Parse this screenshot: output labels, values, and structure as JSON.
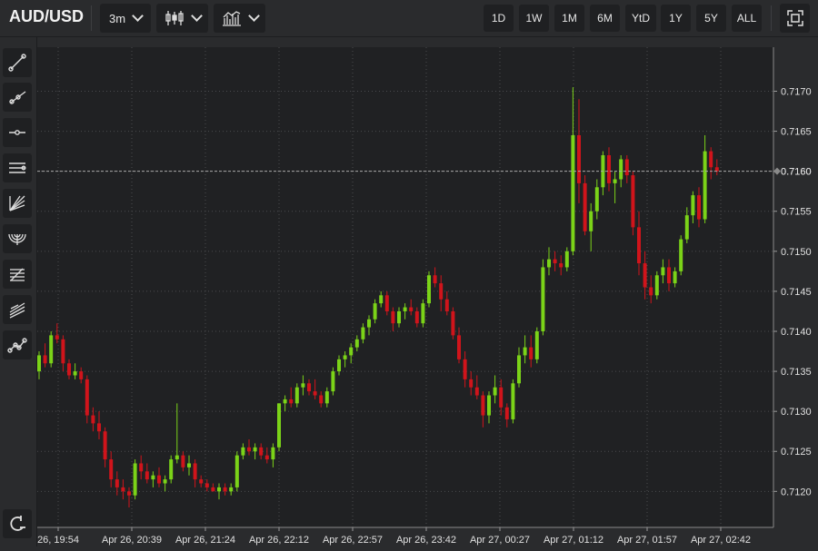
{
  "symbol": "AUD/USD",
  "toolbar": {
    "interval": "3m",
    "chart_type_icon": "candlestick-icon",
    "indicators_icon": "indicators-icon",
    "fullscreen_icon": "fullscreen-icon"
  },
  "ranges": [
    "1D",
    "1W",
    "1M",
    "6M",
    "YtD",
    "1Y",
    "5Y",
    "ALL"
  ],
  "tools": [
    "trend-line-icon",
    "ray-icon",
    "horizontal-line-icon",
    "parallel-channel-icon",
    "fib-fan-icon",
    "fib-arc-icon",
    "fib-retracement-icon",
    "pitchfork-icon",
    "path-tool-icon",
    "magnet-icon"
  ],
  "colors": {
    "up": "#7bd318",
    "down": "#d0141b",
    "background": "#202123",
    "grid": "#4a4b4e"
  },
  "chart_data": {
    "type": "candlestick",
    "y_ticks": [
      "0.7120",
      "0.7125",
      "0.7130",
      "0.7135",
      "0.7140",
      "0.7145",
      "0.7150",
      "0.7155",
      "0.7160",
      "0.7165",
      "0.7170"
    ],
    "ylim": [
      0.71155,
      0.71755
    ],
    "x_ticks": [
      "26, 19:54",
      "Apr 26, 20:39",
      "Apr 26, 21:24",
      "Apr 26, 22:12",
      "Apr 26, 22:57",
      "Apr 26, 23:42",
      "Apr 27, 00:27",
      "Apr 27, 01:12",
      "Apr 27, 01:57",
      "Apr 27, 02:42"
    ],
    "last_price": "0.7160",
    "grid": true,
    "candles": [
      [
        0.7135,
        0.71375,
        0.7134,
        0.7137
      ],
      [
        0.7137,
        0.71385,
        0.71355,
        0.7136
      ],
      [
        0.7136,
        0.714,
        0.71355,
        0.71395
      ],
      [
        0.71395,
        0.7141,
        0.71385,
        0.7139
      ],
      [
        0.7139,
        0.71395,
        0.7135,
        0.7136
      ],
      [
        0.7136,
        0.71365,
        0.7134,
        0.71345
      ],
      [
        0.71345,
        0.7136,
        0.7134,
        0.7135
      ],
      [
        0.7135,
        0.71355,
        0.71335,
        0.7134
      ],
      [
        0.7134,
        0.71345,
        0.71285,
        0.71295
      ],
      [
        0.71295,
        0.71305,
        0.71275,
        0.71285
      ],
      [
        0.71285,
        0.713,
        0.71265,
        0.71275
      ],
      [
        0.71275,
        0.7128,
        0.7123,
        0.7124
      ],
      [
        0.7124,
        0.7125,
        0.71205,
        0.71215
      ],
      [
        0.71215,
        0.71225,
        0.71195,
        0.71205
      ],
      [
        0.71205,
        0.71215,
        0.7119,
        0.712
      ],
      [
        0.712,
        0.71205,
        0.7118,
        0.71195
      ],
      [
        0.71195,
        0.7124,
        0.7119,
        0.71235
      ],
      [
        0.71235,
        0.71245,
        0.71215,
        0.71225
      ],
      [
        0.71225,
        0.71235,
        0.7121,
        0.71215
      ],
      [
        0.71215,
        0.71225,
        0.71205,
        0.7122
      ],
      [
        0.7122,
        0.7123,
        0.71205,
        0.7121
      ],
      [
        0.7121,
        0.7122,
        0.712,
        0.71215
      ],
      [
        0.71215,
        0.71245,
        0.7121,
        0.7124
      ],
      [
        0.7124,
        0.7131,
        0.71235,
        0.71245
      ],
      [
        0.71245,
        0.7125,
        0.71225,
        0.7123
      ],
      [
        0.7123,
        0.71245,
        0.7122,
        0.71235
      ],
      [
        0.71235,
        0.7124,
        0.71205,
        0.71215
      ],
      [
        0.71215,
        0.7122,
        0.71205,
        0.7121
      ],
      [
        0.7121,
        0.71215,
        0.712,
        0.71205
      ],
      [
        0.71205,
        0.7121,
        0.712,
        0.712
      ],
      [
        0.712,
        0.7121,
        0.7119,
        0.71205
      ],
      [
        0.71205,
        0.7121,
        0.71195,
        0.712
      ],
      [
        0.712,
        0.7121,
        0.71195,
        0.71205
      ],
      [
        0.71205,
        0.7125,
        0.712,
        0.71245
      ],
      [
        0.71245,
        0.7126,
        0.7124,
        0.71255
      ],
      [
        0.71255,
        0.71265,
        0.71245,
        0.7125
      ],
      [
        0.7125,
        0.7126,
        0.7124,
        0.71255
      ],
      [
        0.71255,
        0.7126,
        0.7124,
        0.71245
      ],
      [
        0.71245,
        0.71255,
        0.71235,
        0.7124
      ],
      [
        0.7124,
        0.7126,
        0.7123,
        0.71255
      ],
      [
        0.71255,
        0.7131,
        0.7125,
        0.7131
      ],
      [
        0.7131,
        0.7132,
        0.713,
        0.71315
      ],
      [
        0.71315,
        0.7133,
        0.71305,
        0.7131
      ],
      [
        0.7131,
        0.71335,
        0.71305,
        0.7133
      ],
      [
        0.7133,
        0.71345,
        0.7132,
        0.71335
      ],
      [
        0.71335,
        0.7134,
        0.7132,
        0.71325
      ],
      [
        0.71325,
        0.7134,
        0.71315,
        0.7132
      ],
      [
        0.7132,
        0.71325,
        0.71305,
        0.7131
      ],
      [
        0.7131,
        0.7133,
        0.71305,
        0.71325
      ],
      [
        0.71325,
        0.71355,
        0.7132,
        0.7135
      ],
      [
        0.7135,
        0.7137,
        0.71345,
        0.71365
      ],
      [
        0.71365,
        0.71375,
        0.71355,
        0.7137
      ],
      [
        0.7137,
        0.71385,
        0.7136,
        0.7138
      ],
      [
        0.7138,
        0.71395,
        0.71375,
        0.7139
      ],
      [
        0.7139,
        0.7141,
        0.71385,
        0.71405
      ],
      [
        0.71405,
        0.7142,
        0.71395,
        0.71415
      ],
      [
        0.71415,
        0.7144,
        0.7141,
        0.71435
      ],
      [
        0.71435,
        0.7145,
        0.7143,
        0.71445
      ],
      [
        0.71445,
        0.7145,
        0.7142,
        0.71425
      ],
      [
        0.71425,
        0.7143,
        0.714,
        0.7141
      ],
      [
        0.7141,
        0.7143,
        0.71405,
        0.71425
      ],
      [
        0.71425,
        0.71435,
        0.71415,
        0.7143
      ],
      [
        0.7143,
        0.7144,
        0.7142,
        0.71425
      ],
      [
        0.71425,
        0.7143,
        0.71405,
        0.7141
      ],
      [
        0.7141,
        0.7144,
        0.71405,
        0.71435
      ],
      [
        0.71435,
        0.71475,
        0.7143,
        0.7147
      ],
      [
        0.7147,
        0.7148,
        0.71455,
        0.7146
      ],
      [
        0.7146,
        0.7147,
        0.71425,
        0.7144
      ],
      [
        0.7144,
        0.7145,
        0.7142,
        0.71425
      ],
      [
        0.71425,
        0.7143,
        0.7139,
        0.71395
      ],
      [
        0.71395,
        0.71405,
        0.7136,
        0.71365
      ],
      [
        0.71365,
        0.71375,
        0.7133,
        0.7134
      ],
      [
        0.7134,
        0.7135,
        0.7132,
        0.7133
      ],
      [
        0.7133,
        0.71345,
        0.71315,
        0.7132
      ],
      [
        0.7132,
        0.71325,
        0.7128,
        0.71295
      ],
      [
        0.71295,
        0.71325,
        0.71285,
        0.7132
      ],
      [
        0.7132,
        0.71345,
        0.7131,
        0.7133
      ],
      [
        0.7133,
        0.7134,
        0.71295,
        0.71305
      ],
      [
        0.71305,
        0.7131,
        0.7128,
        0.7129
      ],
      [
        0.7129,
        0.7134,
        0.71285,
        0.71335
      ],
      [
        0.71335,
        0.7138,
        0.7133,
        0.7137
      ],
      [
        0.7137,
        0.71395,
        0.7136,
        0.7138
      ],
      [
        0.7138,
        0.71395,
        0.71355,
        0.71365
      ],
      [
        0.71365,
        0.71405,
        0.7136,
        0.714
      ],
      [
        0.714,
        0.7149,
        0.71395,
        0.7148
      ],
      [
        0.7148,
        0.71505,
        0.7147,
        0.7149
      ],
      [
        0.7149,
        0.715,
        0.71475,
        0.71485
      ],
      [
        0.71485,
        0.71495,
        0.7147,
        0.7148
      ],
      [
        0.7148,
        0.71505,
        0.71475,
        0.715
      ],
      [
        0.715,
        0.71705,
        0.71495,
        0.71645
      ],
      [
        0.71645,
        0.7169,
        0.7156,
        0.71585
      ],
      [
        0.71585,
        0.71595,
        0.7152,
        0.71525
      ],
      [
        0.71525,
        0.7156,
        0.715,
        0.7155
      ],
      [
        0.7155,
        0.7159,
        0.7154,
        0.7158
      ],
      [
        0.7158,
        0.71625,
        0.7157,
        0.7162
      ],
      [
        0.7162,
        0.7163,
        0.71575,
        0.71585
      ],
      [
        0.71585,
        0.716,
        0.7156,
        0.7159
      ],
      [
        0.7159,
        0.7162,
        0.7158,
        0.71615
      ],
      [
        0.71615,
        0.7162,
        0.71585,
        0.71595
      ],
      [
        0.71595,
        0.716,
        0.7152,
        0.7153
      ],
      [
        0.7153,
        0.7155,
        0.7147,
        0.71485
      ],
      [
        0.71485,
        0.715,
        0.7144,
        0.71455
      ],
      [
        0.71455,
        0.7147,
        0.71435,
        0.71445
      ],
      [
        0.71445,
        0.71475,
        0.7144,
        0.7147
      ],
      [
        0.7147,
        0.7149,
        0.7146,
        0.7148
      ],
      [
        0.7148,
        0.7149,
        0.7145,
        0.7146
      ],
      [
        0.7146,
        0.7148,
        0.71455,
        0.71475
      ],
      [
        0.71475,
        0.7152,
        0.7147,
        0.71515
      ],
      [
        0.71515,
        0.71555,
        0.7151,
        0.71545
      ],
      [
        0.71545,
        0.71575,
        0.71535,
        0.7157
      ],
      [
        0.7157,
        0.7158,
        0.7153,
        0.7154
      ],
      [
        0.7154,
        0.71645,
        0.71535,
        0.71625
      ],
      [
        0.71625,
        0.7163,
        0.7159,
        0.71605
      ],
      [
        0.71605,
        0.71615,
        0.71595,
        0.716
      ]
    ]
  }
}
